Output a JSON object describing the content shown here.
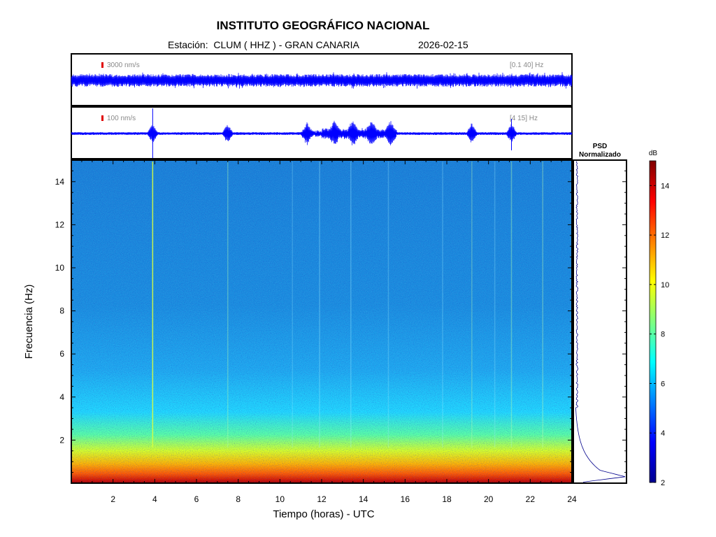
{
  "header": {
    "title": "INSTITUTO GEOGRÁFICO NACIONAL",
    "station": "Estación:  CLUM ( HHZ ) - GRAN CANARIA",
    "date": "2026-02-15"
  },
  "chart_data": [
    {
      "type": "line",
      "panel": "seismogram-broadband",
      "scale_label": "3000 nm/s",
      "filter_label": "[0.1 40] Hz",
      "x_range": [
        0,
        24
      ],
      "color": "#0000ff"
    },
    {
      "type": "line",
      "panel": "seismogram-filtered",
      "scale_label": "100 nm/s",
      "filter_label": "[4 15] Hz",
      "x_range": [
        0,
        24
      ],
      "color": "#0000ff",
      "events_hours": [
        3.9,
        7.5,
        11.3,
        12.6,
        13.5,
        14.4,
        15.3,
        19.2,
        21.1
      ]
    },
    {
      "type": "heatmap",
      "panel": "spectrogram",
      "xlabel": "Tiempo (horas) - UTC",
      "ylabel": "Frecuencia  (Hz)",
      "xlim": [
        0,
        24
      ],
      "ylim": [
        0,
        15
      ],
      "x_ticks": [
        2,
        4,
        6,
        8,
        10,
        12,
        14,
        16,
        18,
        20,
        22,
        24
      ],
      "y_ticks": [
        2,
        4,
        6,
        8,
        10,
        12,
        14
      ],
      "description_values": {
        "db_at_0_5hz": 14,
        "db_at_1_5hz": 10,
        "db_at_3hz": 6.5,
        "db_above_5hz": 5
      }
    },
    {
      "type": "line",
      "panel": "psd",
      "title_line1": "PSD",
      "title_line2": "Normalizado",
      "color": "#00008b"
    },
    {
      "type": "colorbar",
      "unit": "dB",
      "range": [
        2,
        15
      ],
      "ticks": [
        2,
        4,
        6,
        8,
        10,
        12,
        14
      ]
    }
  ]
}
